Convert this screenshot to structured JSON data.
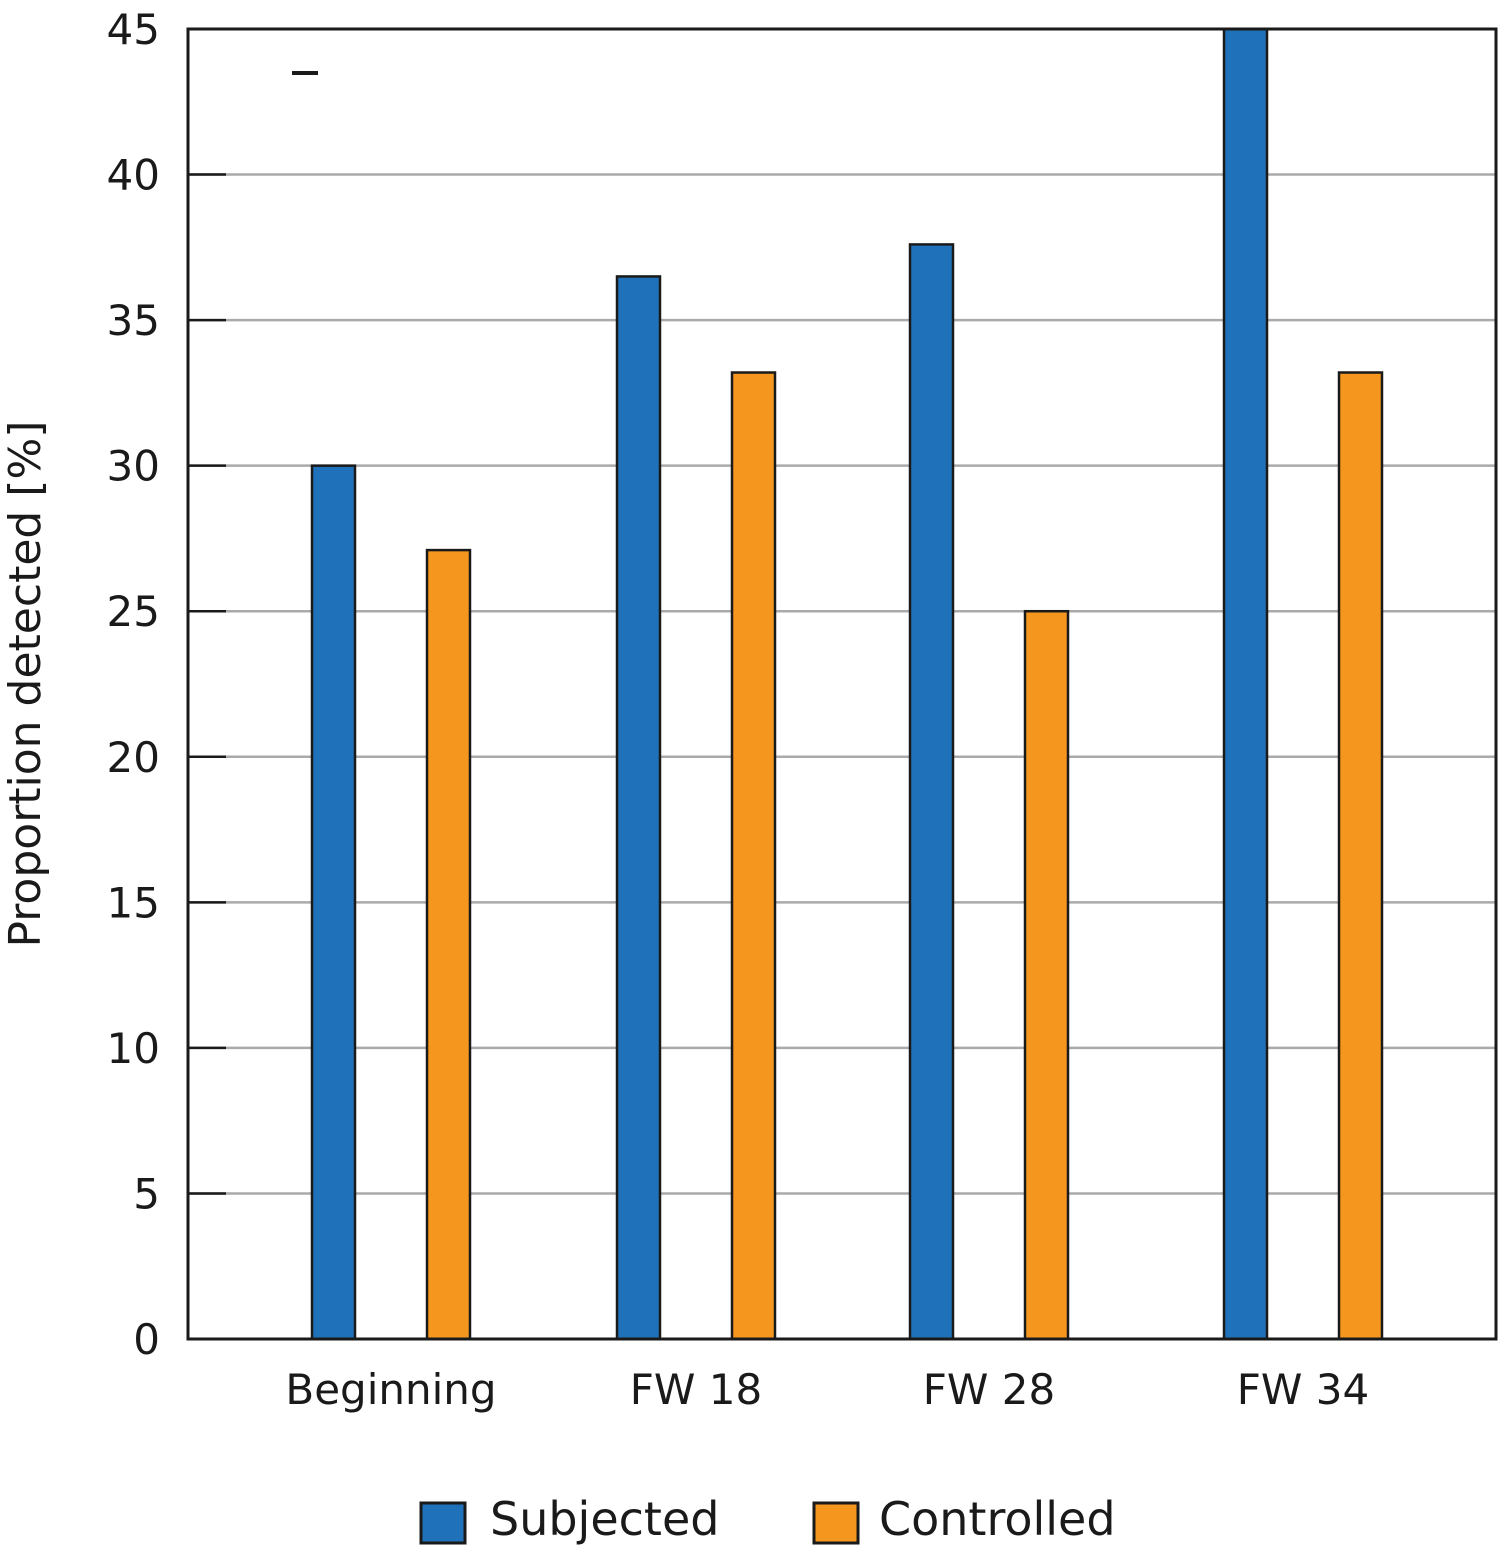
{
  "chart_data": {
    "type": "bar",
    "title": "",
    "xlabel": "",
    "ylabel": "Proportion detected [%]",
    "ylim": [
      0,
      45
    ],
    "yticks": [
      0,
      5,
      10,
      15,
      20,
      25,
      30,
      35,
      40,
      45
    ],
    "grid": true,
    "legend_position": "bottom-center",
    "categories": [
      "Beginning",
      "FW 18",
      "FW 28",
      "FW 34"
    ],
    "series": [
      {
        "name": "Subjected",
        "color": "#1f72b9",
        "values": [
          30,
          36.5,
          37.6,
          45
        ]
      },
      {
        "name": "Controlled",
        "color": "#f5961f",
        "values": [
          27.1,
          33.2,
          25,
          33.2
        ]
      }
    ]
  }
}
